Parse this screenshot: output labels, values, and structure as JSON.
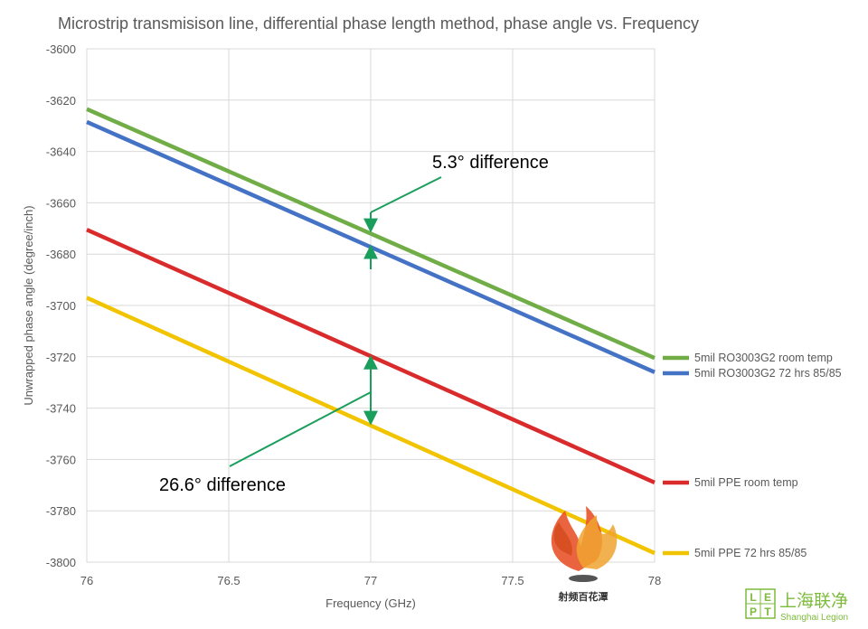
{
  "chart_data": {
    "type": "line",
    "title": "Microstrip transmisison line, differential phase length method, phase angle vs. Frequency",
    "xlabel": "Frequency (GHz)",
    "ylabel": "Unwrapped phase angle (degree/inch)",
    "xlim": [
      76,
      78
    ],
    "ylim": [
      -3800,
      -3600
    ],
    "x_ticks": [
      "76",
      "76.5",
      "77",
      "77.5",
      "78"
    ],
    "y_ticks": [
      "-3600",
      "-3620",
      "-3640",
      "-3660",
      "-3680",
      "-3700",
      "-3720",
      "-3740",
      "-3760",
      "-3780",
      "-3800"
    ],
    "grid": true,
    "legend_position": "right",
    "series": [
      {
        "name": "5mil RO3003G2 room temp",
        "color": "#70ad47",
        "x": [
          76,
          78
        ],
        "y": [
          -3623.5,
          -3720.5
        ]
      },
      {
        "name": "5mil RO3003G2 72 hrs 85/85",
        "color": "#4472c4",
        "x": [
          76,
          78
        ],
        "y": [
          -3628.5,
          -3726
        ]
      },
      {
        "name": "5mil PPE room temp",
        "color": "#d92b2b",
        "x": [
          76,
          78
        ],
        "y": [
          -3670.5,
          -3769
        ]
      },
      {
        "name": "5mil PPE 72 hrs 85/85",
        "color": "#f2c400",
        "x": [
          76,
          78
        ],
        "y": [
          -3697,
          -3796.5
        ]
      }
    ],
    "annotations": [
      {
        "text": "5.3° difference",
        "x": 77,
        "y_top": -3671,
        "y_bottom": -3677
      },
      {
        "text": "26.6° difference",
        "x": 77,
        "y_top": -3720,
        "y_bottom": -3746
      }
    ]
  },
  "watermark": {
    "left_label": "射频百花潭",
    "right_logo_letters": "LEPT",
    "right_label": "上海联净",
    "right_sublabel": "Shanghai Legion"
  }
}
